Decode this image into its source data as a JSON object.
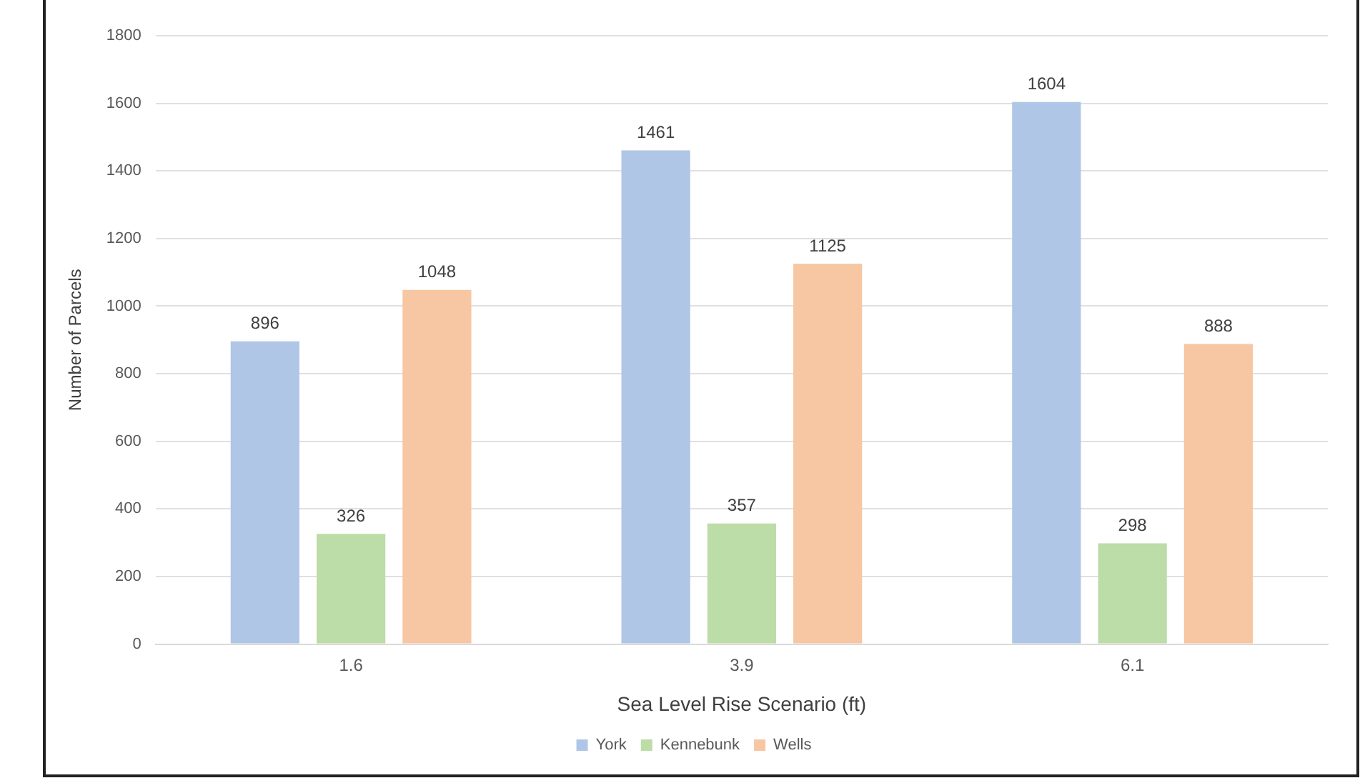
{
  "chart_data": {
    "type": "bar",
    "xlabel": "Sea Level Rise Scenario (ft)",
    "ylabel": "Number of Parcels",
    "categories": [
      "1.6",
      "3.9",
      "6.1"
    ],
    "series": [
      {
        "name": "York",
        "color": "#b0c6e6",
        "values": [
          896,
          1461,
          1604
        ]
      },
      {
        "name": "Kennebunk",
        "color": "#bcdca8",
        "values": [
          326,
          357,
          298
        ]
      },
      {
        "name": "Wells",
        "color": "#f7c6a2",
        "values": [
          1048,
          1125,
          888
        ]
      }
    ],
    "ylim": [
      0,
      1800
    ],
    "yticks": [
      0,
      200,
      400,
      600,
      800,
      1000,
      1200,
      1400,
      1600,
      1800
    ],
    "grid": "y",
    "legend": "bottom",
    "data_labels": true
  }
}
